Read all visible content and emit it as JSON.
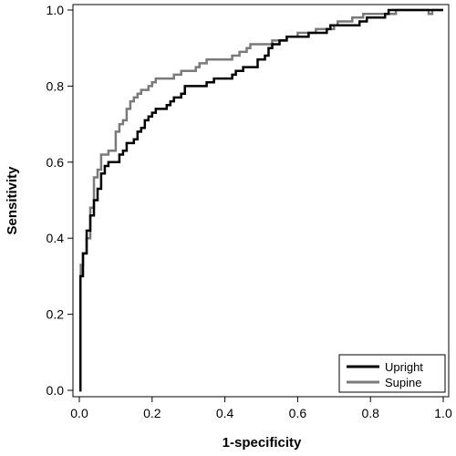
{
  "chart_data": {
    "type": "line",
    "xlabel": "1-specificity",
    "ylabel": "Sensitivity",
    "xlim": [
      0,
      1
    ],
    "ylim": [
      0,
      1
    ],
    "xticks": [
      "0.0",
      "0.2",
      "0.4",
      "0.6",
      "0.8",
      "1.0"
    ],
    "yticks": [
      "0.0",
      "0.2",
      "0.4",
      "0.6",
      "0.8",
      "1.0"
    ],
    "grid": false,
    "legend_position": "bottom-right",
    "series": [
      {
        "name": "Upright",
        "color": "#000000",
        "points": [
          [
            0.0,
            0.0
          ],
          [
            0.003,
            0.3
          ],
          [
            0.01,
            0.3
          ],
          [
            0.01,
            0.36
          ],
          [
            0.02,
            0.37
          ],
          [
            0.02,
            0.42
          ],
          [
            0.03,
            0.44
          ],
          [
            0.03,
            0.46
          ],
          [
            0.04,
            0.46
          ],
          [
            0.04,
            0.5
          ],
          [
            0.05,
            0.5
          ],
          [
            0.05,
            0.53
          ],
          [
            0.06,
            0.55
          ],
          [
            0.06,
            0.57
          ],
          [
            0.07,
            0.57
          ],
          [
            0.07,
            0.59
          ],
          [
            0.08,
            0.6
          ],
          [
            0.1,
            0.6
          ],
          [
            0.11,
            0.62
          ],
          [
            0.12,
            0.63
          ],
          [
            0.13,
            0.65
          ],
          [
            0.15,
            0.66
          ],
          [
            0.16,
            0.68
          ],
          [
            0.17,
            0.69
          ],
          [
            0.18,
            0.71
          ],
          [
            0.19,
            0.72
          ],
          [
            0.2,
            0.73
          ],
          [
            0.21,
            0.74
          ],
          [
            0.24,
            0.75
          ],
          [
            0.25,
            0.76
          ],
          [
            0.26,
            0.77
          ],
          [
            0.27,
            0.77
          ],
          [
            0.28,
            0.78
          ],
          [
            0.29,
            0.8
          ],
          [
            0.3,
            0.8
          ],
          [
            0.35,
            0.81
          ],
          [
            0.36,
            0.81
          ],
          [
            0.37,
            0.82
          ],
          [
            0.41,
            0.82
          ],
          [
            0.42,
            0.83
          ],
          [
            0.43,
            0.84
          ],
          [
            0.44,
            0.84
          ],
          [
            0.45,
            0.85
          ],
          [
            0.48,
            0.85
          ],
          [
            0.49,
            0.87
          ],
          [
            0.5,
            0.87
          ],
          [
            0.51,
            0.88
          ],
          [
            0.52,
            0.9
          ],
          [
            0.53,
            0.91
          ],
          [
            0.55,
            0.92
          ],
          [
            0.57,
            0.93
          ],
          [
            0.62,
            0.93
          ],
          [
            0.63,
            0.94
          ],
          [
            0.68,
            0.95
          ],
          [
            0.69,
            0.96
          ],
          [
            0.74,
            0.96
          ],
          [
            0.77,
            0.97
          ],
          [
            0.79,
            0.98
          ],
          [
            0.84,
            0.99
          ],
          [
            0.85,
            1.0
          ],
          [
            1.0,
            1.0
          ]
        ]
      },
      {
        "name": "Supine",
        "color": "#7a7a7a",
        "points": [
          [
            0.0,
            0.0
          ],
          [
            0.003,
            0.3
          ],
          [
            0.004,
            0.33
          ],
          [
            0.01,
            0.36
          ],
          [
            0.02,
            0.38
          ],
          [
            0.02,
            0.4
          ],
          [
            0.03,
            0.44
          ],
          [
            0.03,
            0.48
          ],
          [
            0.04,
            0.52
          ],
          [
            0.04,
            0.56
          ],
          [
            0.05,
            0.58
          ],
          [
            0.06,
            0.62
          ],
          [
            0.08,
            0.63
          ],
          [
            0.09,
            0.63
          ],
          [
            0.1,
            0.64
          ],
          [
            0.1,
            0.68
          ],
          [
            0.11,
            0.7
          ],
          [
            0.12,
            0.71
          ],
          [
            0.13,
            0.74
          ],
          [
            0.14,
            0.76
          ],
          [
            0.15,
            0.77
          ],
          [
            0.16,
            0.78
          ],
          [
            0.17,
            0.79
          ],
          [
            0.19,
            0.8
          ],
          [
            0.2,
            0.81
          ],
          [
            0.21,
            0.82
          ],
          [
            0.25,
            0.82
          ],
          [
            0.26,
            0.83
          ],
          [
            0.28,
            0.84
          ],
          [
            0.32,
            0.85
          ],
          [
            0.33,
            0.86
          ],
          [
            0.35,
            0.87
          ],
          [
            0.41,
            0.87
          ],
          [
            0.42,
            0.88
          ],
          [
            0.44,
            0.89
          ],
          [
            0.46,
            0.9
          ],
          [
            0.47,
            0.91
          ],
          [
            0.5,
            0.91
          ],
          [
            0.53,
            0.92
          ],
          [
            0.57,
            0.93
          ],
          [
            0.6,
            0.94
          ],
          [
            0.65,
            0.95
          ],
          [
            0.7,
            0.96
          ],
          [
            0.71,
            0.97
          ],
          [
            0.75,
            0.98
          ],
          [
            0.78,
            0.99
          ],
          [
            0.85,
            0.99
          ],
          [
            0.87,
            1.0
          ],
          [
            0.95,
            1.0
          ],
          [
            0.96,
            0.99
          ],
          [
            0.97,
            1.0
          ],
          [
            1.0,
            1.0
          ]
        ]
      }
    ]
  }
}
